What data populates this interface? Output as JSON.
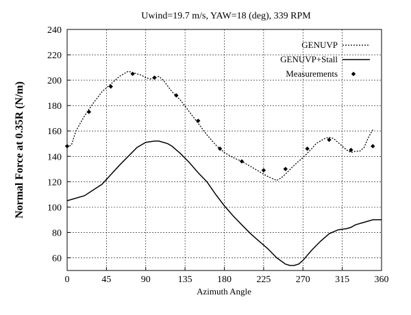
{
  "chart_data": {
    "type": "line",
    "title": "Uwind=19.7 m/s, YAW=18 (deg), 339 RPM",
    "xlabel": "Azimuth Angle",
    "ylabel": "Normal Force at 0.35R (N/m)",
    "xlim": [
      0,
      360
    ],
    "ylim": [
      50,
      240
    ],
    "xticks": [
      0,
      45,
      90,
      135,
      180,
      225,
      270,
      315,
      360
    ],
    "yticks": [
      60,
      80,
      100,
      120,
      140,
      160,
      180,
      200,
      220,
      240
    ],
    "grid": true,
    "legend_position": "top-right",
    "series": [
      {
        "name": "GENUVP",
        "style": "dotted",
        "x": [
          0,
          5,
          10,
          20,
          30,
          40,
          50,
          60,
          65,
          70,
          75,
          80,
          85,
          90,
          95,
          100,
          105,
          110,
          120,
          130,
          140,
          150,
          160,
          170,
          180,
          190,
          200,
          210,
          220,
          230,
          240,
          245,
          250,
          260,
          270,
          280,
          285,
          290,
          295,
          300,
          305,
          310,
          315,
          320,
          325,
          330,
          335,
          340,
          345,
          350
        ],
        "y": [
          147,
          149,
          160,
          172,
          182,
          191,
          197,
          203,
          205,
          207,
          206,
          205,
          204,
          202,
          201,
          202,
          203,
          200,
          191,
          184,
          175,
          166,
          157,
          149,
          143,
          139,
          136,
          132,
          128,
          124,
          121,
          123,
          126,
          133,
          139,
          146,
          150,
          152,
          154,
          155,
          154,
          151,
          148,
          145,
          143,
          144,
          144,
          147,
          155,
          161
        ]
      },
      {
        "name": "GENUVP+Stall",
        "style": "solid",
        "x": [
          0,
          20,
          40,
          60,
          80,
          90,
          100,
          105,
          110,
          115,
          120,
          130,
          140,
          150,
          160,
          170,
          180,
          190,
          200,
          210,
          220,
          230,
          240,
          250,
          255,
          260,
          265,
          270,
          275,
          280,
          290,
          300,
          310,
          320,
          325,
          330,
          340,
          350,
          360
        ],
        "y": [
          105,
          109,
          118,
          133,
          147,
          151,
          152,
          152,
          151,
          150,
          148,
          142,
          135,
          127,
          120,
          110,
          101,
          93,
          86,
          79,
          73,
          67,
          60,
          55,
          54,
          54,
          55,
          58,
          62,
          66,
          73,
          79,
          82,
          83,
          84,
          86,
          88,
          90,
          90
        ]
      },
      {
        "name": "Measurements",
        "style": "markers",
        "x": [
          0,
          25,
          50,
          75,
          100,
          125,
          150,
          175,
          200,
          225,
          250,
          275,
          300,
          325,
          350
        ],
        "y": [
          148,
          175,
          195,
          205,
          202,
          188,
          168,
          146,
          136,
          129,
          130,
          146,
          153,
          145,
          148
        ]
      }
    ]
  }
}
